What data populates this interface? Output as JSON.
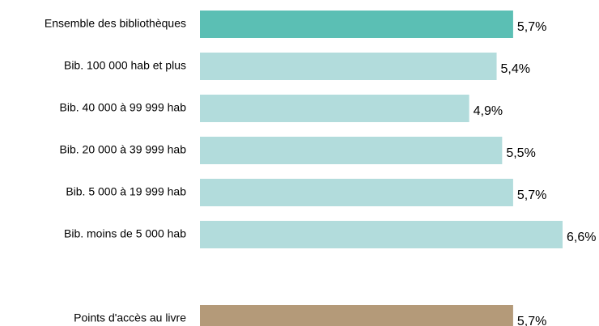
{
  "chart_data": {
    "type": "bar",
    "orientation": "horizontal",
    "categories": [
      "Ensemble des bibliothèques",
      "Bib. 100 000 hab et plus",
      "Bib. 40 000 à 99 999 hab",
      "Bib. 20 000 à 39 999 hab",
      "Bib. 5 000 à 19 999 hab",
      "Bib. moins de 5 000 hab",
      null,
      "Points d'accès au livre"
    ],
    "values": [
      5.7,
      5.4,
      4.9,
      5.5,
      5.7,
      6.6,
      null,
      5.7
    ],
    "value_labels": [
      "5,7%",
      "5,4%",
      "4,9%",
      "5,5%",
      "5,7%",
      "6,6%",
      null,
      "5,7%"
    ],
    "colors": [
      "#5bbfb4",
      "#b2dcdc",
      "#b2dcdc",
      "#b2dcdc",
      "#b2dcdc",
      "#b2dcdc",
      null,
      "#b49a79"
    ],
    "xlim": [
      0,
      6.6
    ]
  }
}
